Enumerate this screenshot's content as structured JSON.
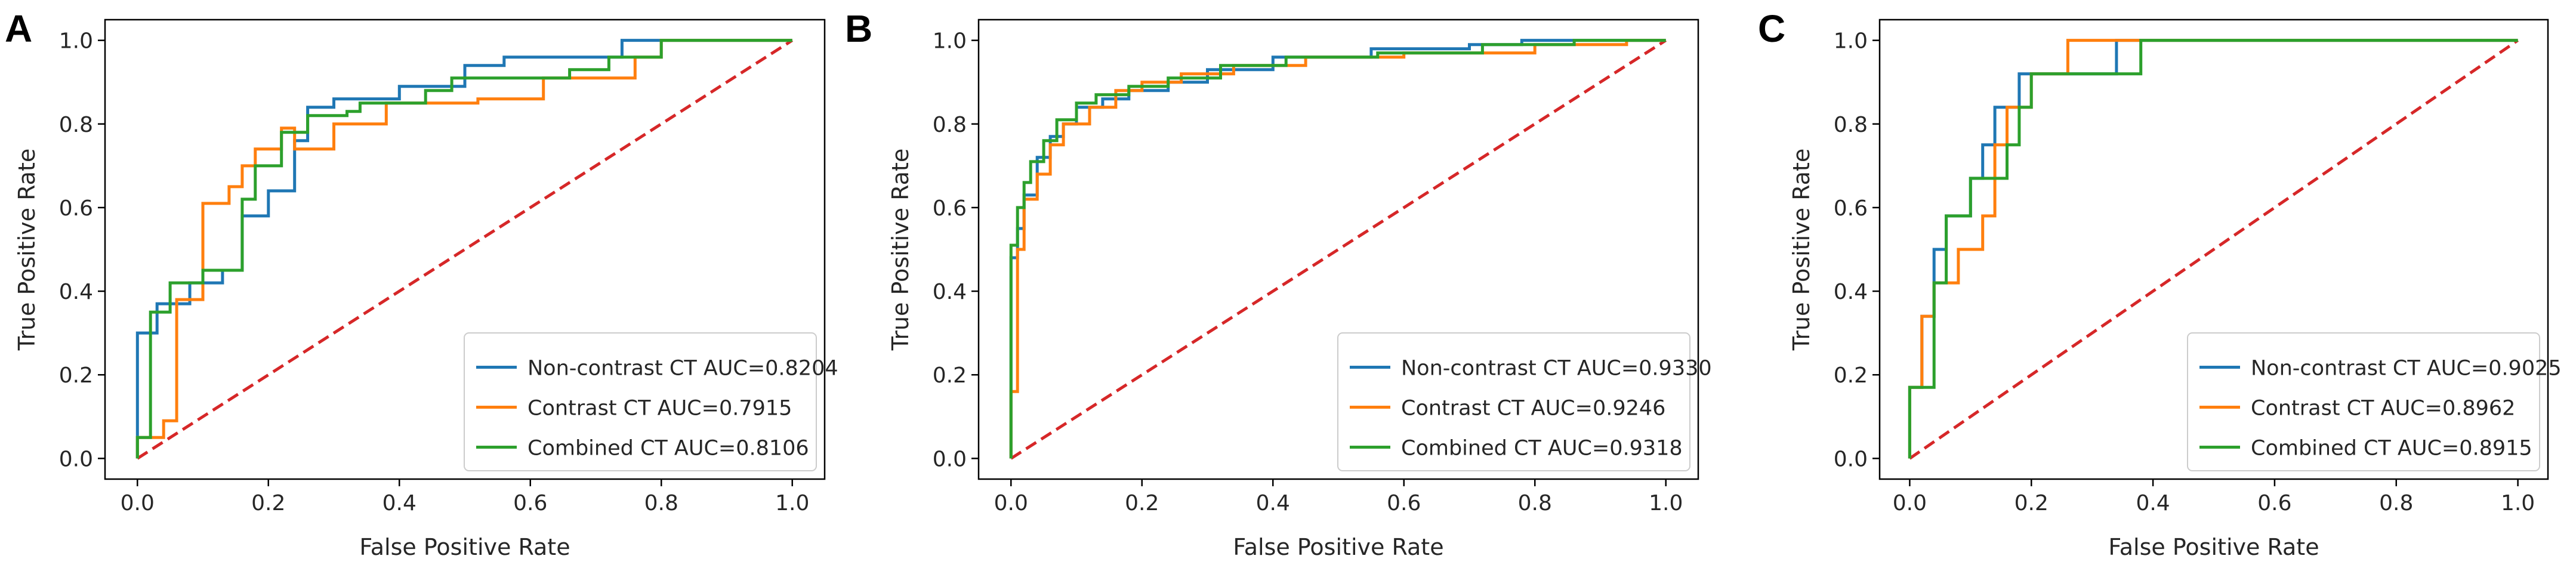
{
  "chart_data": [
    {
      "panel": "A",
      "type": "line",
      "xlabel": "False Positive Rate",
      "ylabel": "True Positive Rate",
      "xlim": [
        0.0,
        1.0
      ],
      "ylim": [
        0.0,
        1.0
      ],
      "xticks": [
        "0.0",
        "0.2",
        "0.4",
        "0.6",
        "0.8",
        "1.0"
      ],
      "yticks": [
        "0.0",
        "0.2",
        "0.4",
        "0.6",
        "0.8",
        "1.0"
      ],
      "legend_position": "lower-right",
      "series": [
        {
          "name": "Non-contrast CT AUC=0.8204",
          "color": "#1f77b4",
          "x": [
            0,
            0,
            0.03,
            0.03,
            0.08,
            0.08,
            0.13,
            0.13,
            0.16,
            0.16,
            0.2,
            0.2,
            0.24,
            0.24,
            0.26,
            0.26,
            0.3,
            0.3,
            0.4,
            0.4,
            0.5,
            0.5,
            0.56,
            0.56,
            0.74,
            0.74,
            1.0
          ],
          "y": [
            0,
            0.3,
            0.3,
            0.37,
            0.37,
            0.42,
            0.42,
            0.45,
            0.45,
            0.58,
            0.58,
            0.64,
            0.64,
            0.76,
            0.76,
            0.84,
            0.84,
            0.86,
            0.86,
            0.89,
            0.89,
            0.94,
            0.94,
            0.96,
            0.96,
            1.0,
            1.0
          ]
        },
        {
          "name": "Contrast CT AUC=0.7915",
          "color": "#ff7f0e",
          "x": [
            0,
            0,
            0.04,
            0.04,
            0.06,
            0.06,
            0.1,
            0.1,
            0.14,
            0.14,
            0.16,
            0.16,
            0.18,
            0.18,
            0.22,
            0.22,
            0.24,
            0.24,
            0.3,
            0.3,
            0.38,
            0.38,
            0.52,
            0.52,
            0.62,
            0.62,
            0.76,
            0.76,
            0.8,
            0.8,
            0.82,
            0.82,
            1.0
          ],
          "y": [
            0,
            0.05,
            0.05,
            0.09,
            0.09,
            0.38,
            0.38,
            0.61,
            0.61,
            0.65,
            0.65,
            0.7,
            0.7,
            0.74,
            0.74,
            0.79,
            0.79,
            0.74,
            0.74,
            0.8,
            0.8,
            0.85,
            0.85,
            0.86,
            0.86,
            0.91,
            0.91,
            0.96,
            0.96,
            1.0,
            1.0,
            1.0,
            1.0
          ]
        },
        {
          "name": "Combined CT AUC=0.8106",
          "color": "#2ca02c",
          "x": [
            0,
            0,
            0.02,
            0.02,
            0.05,
            0.05,
            0.1,
            0.1,
            0.16,
            0.16,
            0.18,
            0.18,
            0.22,
            0.22,
            0.26,
            0.26,
            0.32,
            0.32,
            0.34,
            0.34,
            0.44,
            0.44,
            0.48,
            0.48,
            0.66,
            0.66,
            0.72,
            0.72,
            0.8,
            0.8,
            1.0
          ],
          "y": [
            0,
            0.05,
            0.05,
            0.35,
            0.35,
            0.42,
            0.42,
            0.45,
            0.45,
            0.62,
            0.62,
            0.7,
            0.7,
            0.78,
            0.78,
            0.82,
            0.82,
            0.83,
            0.83,
            0.85,
            0.85,
            0.88,
            0.88,
            0.91,
            0.91,
            0.93,
            0.93,
            0.96,
            0.96,
            1.0,
            1.0
          ]
        },
        {
          "name": "chance",
          "color": "#d62728",
          "dashed": true,
          "x": [
            0,
            1
          ],
          "y": [
            0,
            1
          ]
        }
      ]
    },
    {
      "panel": "B",
      "type": "line",
      "xlabel": "False Positive Rate",
      "ylabel": "True Positive Rate",
      "xlim": [
        0.0,
        1.0
      ],
      "ylim": [
        0.0,
        1.0
      ],
      "xticks": [
        "0.0",
        "0.2",
        "0.4",
        "0.6",
        "0.8",
        "1.0"
      ],
      "yticks": [
        "0.0",
        "0.2",
        "0.4",
        "0.6",
        "0.8",
        "1.0"
      ],
      "legend_position": "lower-right",
      "series": [
        {
          "name": "Non-contrast CT AUC=0.9330",
          "color": "#1f77b4",
          "x": [
            0,
            0,
            0.01,
            0.01,
            0.02,
            0.02,
            0.04,
            0.04,
            0.06,
            0.06,
            0.08,
            0.08,
            0.1,
            0.1,
            0.14,
            0.14,
            0.18,
            0.18,
            0.24,
            0.24,
            0.3,
            0.3,
            0.4,
            0.4,
            0.55,
            0.55,
            0.7,
            0.7,
            0.78,
            0.78,
            1.0
          ],
          "y": [
            0,
            0.48,
            0.48,
            0.55,
            0.55,
            0.63,
            0.63,
            0.72,
            0.72,
            0.77,
            0.77,
            0.8,
            0.8,
            0.84,
            0.84,
            0.86,
            0.86,
            0.88,
            0.88,
            0.9,
            0.9,
            0.93,
            0.93,
            0.96,
            0.96,
            0.98,
            0.98,
            0.99,
            0.99,
            1.0,
            1.0
          ]
        },
        {
          "name": "Contrast CT AUC=0.9246",
          "color": "#ff7f0e",
          "x": [
            0,
            0,
            0.01,
            0.01,
            0.02,
            0.02,
            0.04,
            0.04,
            0.06,
            0.06,
            0.08,
            0.08,
            0.12,
            0.12,
            0.16,
            0.16,
            0.2,
            0.2,
            0.26,
            0.26,
            0.34,
            0.34,
            0.45,
            0.45,
            0.6,
            0.6,
            0.8,
            0.8,
            0.94,
            0.94,
            1.0
          ],
          "y": [
            0,
            0.16,
            0.16,
            0.5,
            0.5,
            0.62,
            0.62,
            0.68,
            0.68,
            0.75,
            0.75,
            0.8,
            0.8,
            0.84,
            0.84,
            0.88,
            0.88,
            0.9,
            0.9,
            0.92,
            0.92,
            0.94,
            0.94,
            0.96,
            0.96,
            0.97,
            0.97,
            0.99,
            0.99,
            1.0,
            1.0
          ]
        },
        {
          "name": "Combined CT AUC=0.9318",
          "color": "#2ca02c",
          "x": [
            0,
            0,
            0.01,
            0.01,
            0.02,
            0.02,
            0.03,
            0.03,
            0.05,
            0.05,
            0.07,
            0.07,
            0.1,
            0.1,
            0.13,
            0.13,
            0.18,
            0.18,
            0.24,
            0.24,
            0.32,
            0.32,
            0.42,
            0.42,
            0.56,
            0.56,
            0.72,
            0.72,
            0.86,
            0.86,
            1.0
          ],
          "y": [
            0,
            0.51,
            0.51,
            0.6,
            0.6,
            0.66,
            0.66,
            0.71,
            0.71,
            0.76,
            0.76,
            0.81,
            0.81,
            0.85,
            0.85,
            0.87,
            0.87,
            0.89,
            0.89,
            0.91,
            0.91,
            0.94,
            0.94,
            0.96,
            0.96,
            0.97,
            0.97,
            0.99,
            0.99,
            1.0,
            1.0
          ]
        },
        {
          "name": "chance",
          "color": "#d62728",
          "dashed": true,
          "x": [
            0,
            1
          ],
          "y": [
            0,
            1
          ]
        }
      ]
    },
    {
      "panel": "C",
      "type": "line",
      "xlabel": "False Positive Rate",
      "ylabel": "True Positive Rate",
      "xlim": [
        0.0,
        1.0
      ],
      "ylim": [
        0.0,
        1.0
      ],
      "xticks": [
        "0.0",
        "0.2",
        "0.4",
        "0.6",
        "0.8",
        "1.0"
      ],
      "yticks": [
        "0.0",
        "0.2",
        "0.4",
        "0.6",
        "0.8",
        "1.0"
      ],
      "legend_position": "lower-right",
      "series": [
        {
          "name": "Non-contrast CT AUC=0.9025",
          "color": "#1f77b4",
          "x": [
            0,
            0,
            0.02,
            0.02,
            0.04,
            0.04,
            0.06,
            0.06,
            0.1,
            0.1,
            0.12,
            0.12,
            0.14,
            0.14,
            0.16,
            0.16,
            0.18,
            0.18,
            0.32,
            0.32,
            0.34,
            0.34,
            1.0
          ],
          "y": [
            0,
            0.17,
            0.17,
            0.34,
            0.34,
            0.5,
            0.5,
            0.58,
            0.58,
            0.67,
            0.67,
            0.75,
            0.75,
            0.84,
            0.84,
            0.84,
            0.84,
            0.92,
            0.92,
            0.92,
            0.92,
            1.0,
            1.0
          ]
        },
        {
          "name": "Contrast CT AUC=0.8962",
          "color": "#ff7f0e",
          "x": [
            0,
            0,
            0.02,
            0.02,
            0.04,
            0.04,
            0.08,
            0.08,
            0.12,
            0.12,
            0.14,
            0.14,
            0.16,
            0.16,
            0.18,
            0.18,
            0.2,
            0.2,
            0.24,
            0.24,
            0.26,
            0.26,
            0.3,
            0.3,
            1.0
          ],
          "y": [
            0,
            0.17,
            0.17,
            0.34,
            0.34,
            0.42,
            0.42,
            0.5,
            0.5,
            0.58,
            0.58,
            0.75,
            0.75,
            0.84,
            0.84,
            0.84,
            0.84,
            0.92,
            0.92,
            0.92,
            0.92,
            1.0,
            1.0,
            1.0,
            1.0
          ]
        },
        {
          "name": "Combined CT AUC=0.8915",
          "color": "#2ca02c",
          "x": [
            0,
            0,
            0.02,
            0.02,
            0.04,
            0.04,
            0.06,
            0.06,
            0.1,
            0.1,
            0.14,
            0.14,
            0.16,
            0.16,
            0.18,
            0.18,
            0.2,
            0.2,
            0.28,
            0.28,
            0.38,
            0.38,
            1.0
          ],
          "y": [
            0,
            0.17,
            0.17,
            0.17,
            0.17,
            0.42,
            0.42,
            0.58,
            0.58,
            0.67,
            0.67,
            0.67,
            0.67,
            0.75,
            0.75,
            0.84,
            0.84,
            0.92,
            0.92,
            0.92,
            0.92,
            1.0,
            1.0
          ]
        },
        {
          "name": "chance",
          "color": "#d62728",
          "dashed": true,
          "x": [
            0,
            1
          ],
          "y": [
            0,
            1
          ]
        }
      ]
    }
  ]
}
